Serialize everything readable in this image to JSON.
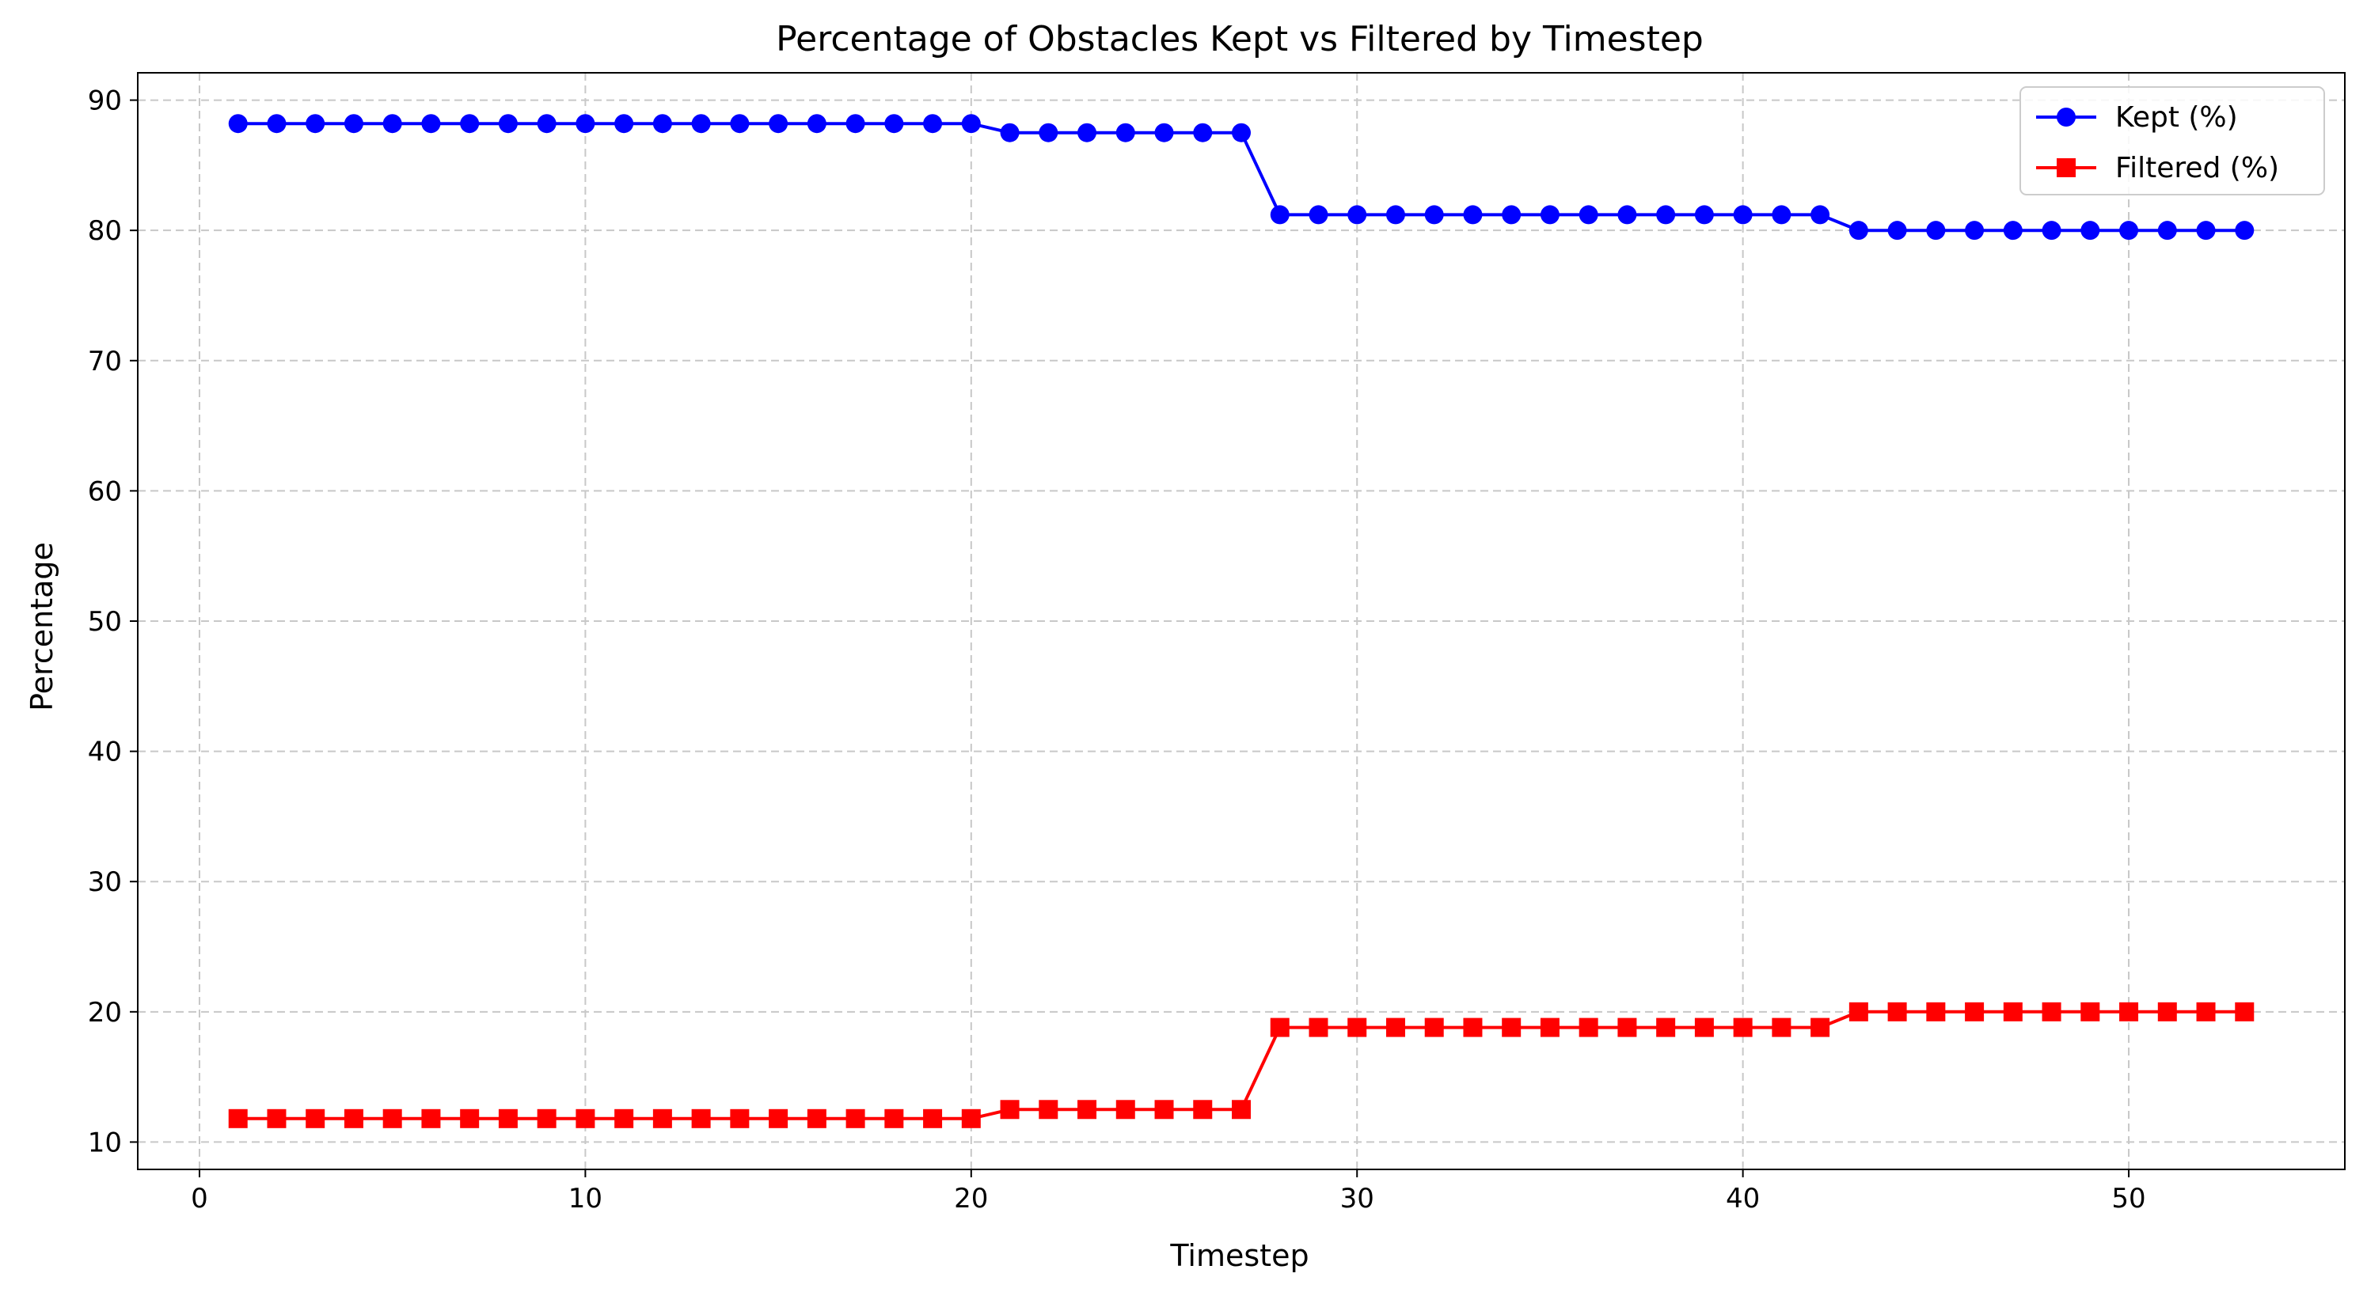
{
  "chart_data": {
    "type": "line",
    "title": "Percentage of Obstacles Kept vs Filtered by Timestep",
    "xlabel": "Timestep",
    "ylabel": "Percentage",
    "xlim": [
      -1.6,
      55.6
    ],
    "ylim": [
      7.9,
      92.1
    ],
    "xticks": [
      0,
      10,
      20,
      30,
      40,
      50
    ],
    "yticks": [
      10,
      20,
      30,
      40,
      50,
      60,
      70,
      80,
      90
    ],
    "grid": true,
    "legend_position": "upper right",
    "x": [
      1,
      2,
      3,
      4,
      5,
      6,
      7,
      8,
      9,
      10,
      11,
      12,
      13,
      14,
      15,
      16,
      17,
      18,
      19,
      20,
      21,
      22,
      23,
      24,
      25,
      26,
      27,
      28,
      29,
      30,
      31,
      32,
      33,
      34,
      35,
      36,
      37,
      38,
      39,
      40,
      41,
      42,
      43,
      44,
      45,
      46,
      47,
      48,
      49,
      50,
      51,
      52,
      53
    ],
    "series": [
      {
        "name": "Kept (%)",
        "color": "#0000ff",
        "marker": "circle",
        "values": [
          88.2,
          88.2,
          88.2,
          88.2,
          88.2,
          88.2,
          88.2,
          88.2,
          88.2,
          88.2,
          88.2,
          88.2,
          88.2,
          88.2,
          88.2,
          88.2,
          88.2,
          88.2,
          88.2,
          88.2,
          87.5,
          87.5,
          87.5,
          87.5,
          87.5,
          87.5,
          87.5,
          81.2,
          81.2,
          81.2,
          81.2,
          81.2,
          81.2,
          81.2,
          81.2,
          81.2,
          81.2,
          81.2,
          81.2,
          81.2,
          81.2,
          81.2,
          80.0,
          80.0,
          80.0,
          80.0,
          80.0,
          80.0,
          80.0,
          80.0,
          80.0,
          80.0,
          80.0
        ]
      },
      {
        "name": "Filtered (%)",
        "color": "#ff0000",
        "marker": "square",
        "values": [
          11.8,
          11.8,
          11.8,
          11.8,
          11.8,
          11.8,
          11.8,
          11.8,
          11.8,
          11.8,
          11.8,
          11.8,
          11.8,
          11.8,
          11.8,
          11.8,
          11.8,
          11.8,
          11.8,
          11.8,
          12.5,
          12.5,
          12.5,
          12.5,
          12.5,
          12.5,
          12.5,
          18.8,
          18.8,
          18.8,
          18.8,
          18.8,
          18.8,
          18.8,
          18.8,
          18.8,
          18.8,
          18.8,
          18.8,
          18.8,
          18.8,
          18.8,
          20.0,
          20.0,
          20.0,
          20.0,
          20.0,
          20.0,
          20.0,
          20.0,
          20.0,
          20.0,
          20.0
        ]
      }
    ]
  }
}
